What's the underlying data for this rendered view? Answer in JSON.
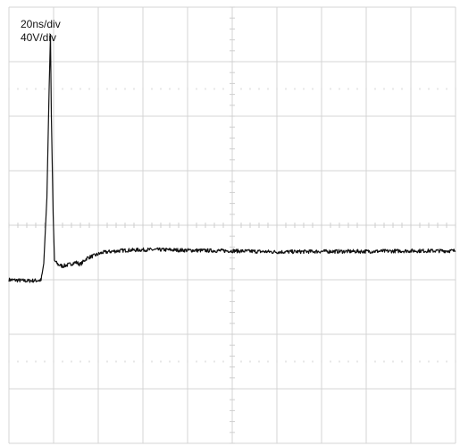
{
  "chart_data": {
    "type": "line",
    "title": "",
    "xlabel": "",
    "ylabel": "",
    "grid": true,
    "colors": {
      "trace": "#111111",
      "grid": "#d4d4d4",
      "tick": "#cfcfcf",
      "background": "#ffffff"
    },
    "divisions": {
      "x": 10,
      "y": 8
    },
    "scale_labels": {
      "time": "20ns/div",
      "voltage": "40V/div"
    },
    "xlim": [
      0,
      10
    ],
    "ylim": [
      -4,
      4
    ],
    "series": [
      {
        "values": [
          [
            0.0,
            -1.0
          ],
          [
            0.4,
            -1.02
          ],
          [
            0.72,
            -1.01
          ],
          [
            0.78,
            -0.7
          ],
          [
            0.85,
            0.5
          ],
          [
            0.9,
            2.5
          ],
          [
            0.93,
            3.5
          ],
          [
            0.95,
            2.0
          ],
          [
            0.99,
            0.2
          ],
          [
            1.02,
            -0.65
          ],
          [
            1.1,
            -0.72
          ],
          [
            1.2,
            -0.75
          ],
          [
            1.35,
            -0.72
          ],
          [
            1.5,
            -0.68
          ],
          [
            1.6,
            -0.72
          ],
          [
            1.75,
            -0.6
          ],
          [
            1.9,
            -0.56
          ],
          [
            2.1,
            -0.5
          ],
          [
            2.3,
            -0.48
          ],
          [
            2.6,
            -0.46
          ],
          [
            3.0,
            -0.45
          ],
          [
            3.5,
            -0.45
          ],
          [
            4.0,
            -0.46
          ],
          [
            5.0,
            -0.47
          ],
          [
            6.0,
            -0.49
          ],
          [
            7.0,
            -0.48
          ],
          [
            8.0,
            -0.48
          ],
          [
            9.0,
            -0.47
          ],
          [
            10.0,
            -0.47
          ]
        ]
      }
    ]
  }
}
